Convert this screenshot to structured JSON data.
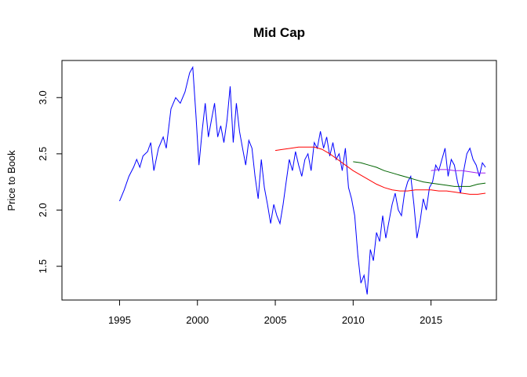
{
  "chart_data": {
    "type": "line",
    "title": "Mid Cap",
    "xlabel": "",
    "ylabel": "Price to Book",
    "xlim": [
      1991.3,
      2019.2
    ],
    "ylim": [
      1.2,
      3.33
    ],
    "x_ticks": [
      1995,
      2000,
      2005,
      2010,
      2015
    ],
    "x_tick_labels": [
      "1995",
      "2000",
      "2005",
      "2010",
      "2015"
    ],
    "y_ticks": [
      1.5,
      2.0,
      2.5,
      3.0
    ],
    "y_tick_labels": [
      "1.5",
      "2.0",
      "2.5",
      "3.0"
    ],
    "grid": false,
    "legend": "none",
    "series": [
      {
        "color": "#0000ff",
        "points": [
          [
            1995.0,
            2.08
          ],
          [
            1995.3,
            2.18
          ],
          [
            1995.6,
            2.3
          ],
          [
            1995.9,
            2.38
          ],
          [
            1996.1,
            2.45
          ],
          [
            1996.3,
            2.38
          ],
          [
            1996.5,
            2.48
          ],
          [
            1996.8,
            2.52
          ],
          [
            1997.0,
            2.6
          ],
          [
            1997.2,
            2.35
          ],
          [
            1997.5,
            2.55
          ],
          [
            1997.8,
            2.65
          ],
          [
            1998.0,
            2.55
          ],
          [
            1998.3,
            2.9
          ],
          [
            1998.6,
            3.0
          ],
          [
            1998.9,
            2.95
          ],
          [
            1999.2,
            3.05
          ],
          [
            1999.5,
            3.22
          ],
          [
            1999.7,
            3.27
          ],
          [
            1999.9,
            2.85
          ],
          [
            2000.1,
            2.4
          ],
          [
            2000.3,
            2.7
          ],
          [
            2000.5,
            2.95
          ],
          [
            2000.7,
            2.65
          ],
          [
            2000.9,
            2.8
          ],
          [
            2001.1,
            2.95
          ],
          [
            2001.3,
            2.65
          ],
          [
            2001.5,
            2.75
          ],
          [
            2001.7,
            2.6
          ],
          [
            2001.9,
            2.8
          ],
          [
            2002.1,
            3.1
          ],
          [
            2002.3,
            2.6
          ],
          [
            2002.5,
            2.95
          ],
          [
            2002.7,
            2.7
          ],
          [
            2002.9,
            2.55
          ],
          [
            2003.1,
            2.4
          ],
          [
            2003.3,
            2.62
          ],
          [
            2003.5,
            2.55
          ],
          [
            2003.7,
            2.3
          ],
          [
            2003.9,
            2.1
          ],
          [
            2004.1,
            2.45
          ],
          [
            2004.3,
            2.2
          ],
          [
            2004.5,
            2.05
          ],
          [
            2004.7,
            1.88
          ],
          [
            2004.9,
            2.05
          ],
          [
            2005.1,
            1.95
          ],
          [
            2005.3,
            1.88
          ],
          [
            2005.5,
            2.05
          ],
          [
            2005.7,
            2.25
          ],
          [
            2005.9,
            2.45
          ],
          [
            2006.1,
            2.35
          ],
          [
            2006.3,
            2.52
          ],
          [
            2006.5,
            2.4
          ],
          [
            2006.7,
            2.3
          ],
          [
            2006.9,
            2.45
          ],
          [
            2007.1,
            2.5
          ],
          [
            2007.3,
            2.35
          ],
          [
            2007.5,
            2.6
          ],
          [
            2007.7,
            2.55
          ],
          [
            2007.9,
            2.7
          ],
          [
            2008.1,
            2.55
          ],
          [
            2008.3,
            2.65
          ],
          [
            2008.5,
            2.48
          ],
          [
            2008.7,
            2.6
          ],
          [
            2008.9,
            2.45
          ],
          [
            2009.1,
            2.5
          ],
          [
            2009.3,
            2.35
          ],
          [
            2009.5,
            2.55
          ],
          [
            2009.7,
            2.2
          ],
          [
            2009.9,
            2.1
          ],
          [
            2010.1,
            1.95
          ],
          [
            2010.3,
            1.6
          ],
          [
            2010.5,
            1.35
          ],
          [
            2010.7,
            1.42
          ],
          [
            2010.9,
            1.25
          ],
          [
            2011.1,
            1.65
          ],
          [
            2011.3,
            1.55
          ],
          [
            2011.5,
            1.8
          ],
          [
            2011.7,
            1.72
          ],
          [
            2011.9,
            1.95
          ],
          [
            2012.1,
            1.75
          ],
          [
            2012.3,
            1.9
          ],
          [
            2012.5,
            2.05
          ],
          [
            2012.7,
            2.15
          ],
          [
            2012.9,
            2.0
          ],
          [
            2013.1,
            1.95
          ],
          [
            2013.3,
            2.15
          ],
          [
            2013.5,
            2.25
          ],
          [
            2013.7,
            2.3
          ],
          [
            2013.9,
            2.05
          ],
          [
            2014.1,
            1.75
          ],
          [
            2014.3,
            1.9
          ],
          [
            2014.5,
            2.1
          ],
          [
            2014.7,
            2.0
          ],
          [
            2014.9,
            2.2
          ],
          [
            2015.1,
            2.25
          ],
          [
            2015.3,
            2.4
          ],
          [
            2015.5,
            2.35
          ],
          [
            2015.7,
            2.45
          ],
          [
            2015.9,
            2.55
          ],
          [
            2016.1,
            2.3
          ],
          [
            2016.3,
            2.45
          ],
          [
            2016.5,
            2.4
          ],
          [
            2016.7,
            2.25
          ],
          [
            2016.9,
            2.15
          ],
          [
            2017.1,
            2.35
          ],
          [
            2017.3,
            2.5
          ],
          [
            2017.5,
            2.55
          ],
          [
            2017.7,
            2.45
          ],
          [
            2017.9,
            2.4
          ],
          [
            2018.1,
            2.3
          ],
          [
            2018.3,
            2.42
          ],
          [
            2018.5,
            2.38
          ]
        ]
      },
      {
        "color": "#ff0000",
        "points": [
          [
            2005.0,
            2.53
          ],
          [
            2005.5,
            2.54
          ],
          [
            2006.0,
            2.55
          ],
          [
            2006.5,
            2.56
          ],
          [
            2007.0,
            2.56
          ],
          [
            2007.5,
            2.56
          ],
          [
            2008.0,
            2.54
          ],
          [
            2008.5,
            2.5
          ],
          [
            2009.0,
            2.45
          ],
          [
            2009.5,
            2.4
          ],
          [
            2010.0,
            2.35
          ],
          [
            2010.5,
            2.31
          ],
          [
            2011.0,
            2.27
          ],
          [
            2011.5,
            2.23
          ],
          [
            2012.0,
            2.2
          ],
          [
            2012.5,
            2.18
          ],
          [
            2013.0,
            2.17
          ],
          [
            2013.5,
            2.17
          ],
          [
            2014.0,
            2.18
          ],
          [
            2014.5,
            2.18
          ],
          [
            2015.0,
            2.18
          ],
          [
            2015.5,
            2.17
          ],
          [
            2016.0,
            2.17
          ],
          [
            2016.5,
            2.16
          ],
          [
            2017.0,
            2.15
          ],
          [
            2017.5,
            2.14
          ],
          [
            2018.0,
            2.14
          ],
          [
            2018.5,
            2.15
          ]
        ]
      },
      {
        "color": "#006400",
        "points": [
          [
            2010.0,
            2.43
          ],
          [
            2010.5,
            2.42
          ],
          [
            2011.0,
            2.4
          ],
          [
            2011.5,
            2.38
          ],
          [
            2012.0,
            2.35
          ],
          [
            2012.5,
            2.33
          ],
          [
            2013.0,
            2.31
          ],
          [
            2013.5,
            2.29
          ],
          [
            2014.0,
            2.27
          ],
          [
            2014.5,
            2.25
          ],
          [
            2015.0,
            2.24
          ],
          [
            2015.5,
            2.23
          ],
          [
            2016.0,
            2.22
          ],
          [
            2016.5,
            2.21
          ],
          [
            2017.0,
            2.21
          ],
          [
            2017.5,
            2.21
          ],
          [
            2018.0,
            2.23
          ],
          [
            2018.5,
            2.24
          ]
        ]
      },
      {
        "color": "#a020f0",
        "points": [
          [
            2015.0,
            2.35
          ],
          [
            2015.5,
            2.36
          ],
          [
            2016.0,
            2.36
          ],
          [
            2016.5,
            2.35
          ],
          [
            2017.0,
            2.35
          ],
          [
            2017.5,
            2.34
          ],
          [
            2018.0,
            2.33
          ],
          [
            2018.5,
            2.33
          ]
        ]
      }
    ]
  }
}
